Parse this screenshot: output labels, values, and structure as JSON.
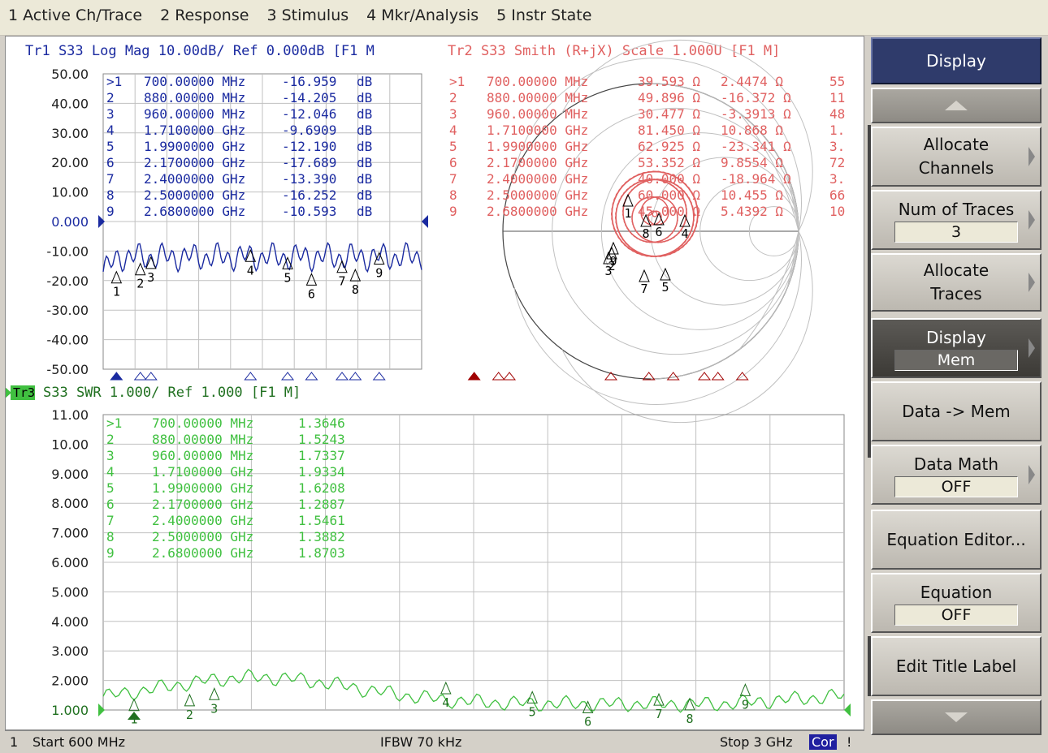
{
  "menu": [
    "1 Active Ch/Trace",
    "2 Response",
    "3 Stimulus",
    "4 Mkr/Analysis",
    "5 Instr State"
  ],
  "colors": {
    "tr1": "#1a2aa0",
    "tr2": "#e06060",
    "tr3": "#40c040",
    "grid": "#c0c0c0"
  },
  "tr1": {
    "header": "Tr1 S33 Log Mag 10.00dB/ Ref 0.000dB [F1 M",
    "yticks": [
      "50.00",
      "40.00",
      "30.00",
      "20.00",
      "10.00",
      "0.000",
      "-10.00",
      "-20.00",
      "-30.00",
      "-40.00",
      "-50.00"
    ],
    "markers": [
      [
        ">1",
        "700.00000 MHz",
        "-16.959",
        "dB"
      ],
      [
        "2",
        "880.00000 MHz",
        "-14.205",
        "dB"
      ],
      [
        "3",
        "960.00000 MHz",
        "-12.046",
        "dB"
      ],
      [
        "4",
        "1.7100000 GHz",
        "-9.6909",
        "dB"
      ],
      [
        "5",
        "1.9900000 GHz",
        "-12.190",
        "dB"
      ],
      [
        "6",
        "2.1700000 GHz",
        "-17.689",
        "dB"
      ],
      [
        "7",
        "2.4000000 GHz",
        "-13.390",
        "dB"
      ],
      [
        "8",
        "2.5000000 GHz",
        "-16.252",
        "dB"
      ],
      [
        "9",
        "2.6800000 GHz",
        "-10.593",
        "dB"
      ]
    ],
    "marker_freqs_ghz": [
      0.7,
      0.88,
      0.96,
      1.71,
      1.99,
      2.17,
      2.4,
      2.5,
      2.68
    ]
  },
  "tr2": {
    "header": "Tr2 S33 Smith (R+jX) Scale 1.000U [F1 M]",
    "markers": [
      [
        ">1",
        "700.00000 MHz",
        "39.593 Ω",
        "2.4474 Ω",
        "55"
      ],
      [
        "2",
        "880.00000 MHz",
        "49.896 Ω",
        "-16.372 Ω",
        "11"
      ],
      [
        "3",
        "960.00000 MHz",
        "30.477 Ω",
        "-3.3913 Ω",
        "48"
      ],
      [
        "4",
        "1.7100000 GHz",
        "81.450 Ω",
        "10.868 Ω",
        "1."
      ],
      [
        "5",
        "1.9900000 GHz",
        "62.925 Ω",
        "-23.341 Ω",
        "3."
      ],
      [
        "6",
        "2.1700000 GHz",
        "53.352 Ω",
        "9.8554 Ω",
        "72"
      ],
      [
        "7",
        "2.4000000 GHz",
        "40.000 Ω",
        "-18.964 Ω",
        "3."
      ],
      [
        "8",
        "2.5000000 GHz",
        "60.000 Ω",
        "10.455 Ω",
        "66"
      ],
      [
        "9",
        "2.6800000 GHz",
        "45.000 Ω",
        "5.4392 Ω",
        "10"
      ]
    ]
  },
  "tr3": {
    "badge": "Tr3",
    "header": "S33 SWR 1.000/ Ref 1.000 [F1 M]",
    "yticks": [
      "11.00",
      "10.00",
      "9.000",
      "8.000",
      "7.000",
      "6.000",
      "5.000",
      "4.000",
      "3.000",
      "2.000",
      "1.000"
    ],
    "markers": [
      [
        ">1",
        "700.00000 MHz",
        "1.3646"
      ],
      [
        "2",
        "880.00000 MHz",
        "1.5243"
      ],
      [
        "3",
        "960.00000 MHz",
        "1.7337"
      ],
      [
        "4",
        "1.7100000 GHz",
        "1.9334"
      ],
      [
        "5",
        "1.9900000 GHz",
        "1.6208"
      ],
      [
        "6",
        "2.1700000 GHz",
        "1.2887"
      ],
      [
        "7",
        "2.4000000 GHz",
        "1.5461"
      ],
      [
        "8",
        "2.5000000 GHz",
        "1.3882"
      ],
      [
        "9",
        "2.6800000 GHz",
        "1.8703"
      ]
    ]
  },
  "start_ghz": 0.6,
  "stop_ghz": 3.0,
  "softkeys": {
    "title": "Display",
    "allocate_channels": [
      "Allocate",
      "Channels"
    ],
    "num_traces": "Num of Traces",
    "num_traces_value": "3",
    "allocate_traces": [
      "Allocate",
      "Traces"
    ],
    "display": "Display",
    "display_value": "Mem",
    "data_mem": "Data -> Mem",
    "data_math": "Data Math",
    "data_math_value": "OFF",
    "equation_editor": "Equation Editor...",
    "equation": "Equation",
    "equation_value": "OFF",
    "edit_title": "Edit Title Label"
  },
  "status": {
    "channel": "1",
    "start": "Start 600 MHz",
    "ifbw": "IFBW 70 kHz",
    "stop": "Stop 3 GHz",
    "cor": "Cor",
    "excl": "!"
  }
}
